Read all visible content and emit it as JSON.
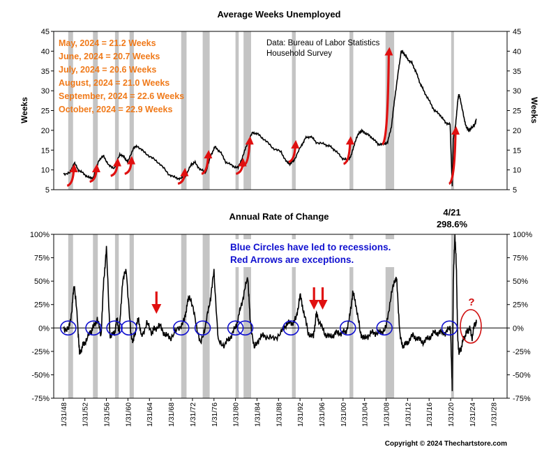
{
  "chart_data": [
    {
      "type": "line",
      "title": "Average Weeks Unemployed",
      "ylabel": "Weeks",
      "ylim": [
        5,
        45
      ],
      "yticks": [
        "5",
        "10",
        "15",
        "20",
        "25",
        "30",
        "35",
        "40",
        "45"
      ],
      "source_lines": [
        "Data: Bureau of Labor Statistics",
        "Household Survey"
      ],
      "annotations": [
        "May, 2024 = 21.2 Weeks",
        "June, 2024 = 20.7 Weeks",
        "July, 2024 = 20.6 Weeks",
        "August, 2024 = 21.0 Weeks",
        "September, 2024 = 22.6 Weeks",
        "October, 2024 = 22.9 Weeks"
      ],
      "x": [
        1948.0,
        1949.2,
        1950.0,
        1950.8,
        1951.8,
        1952.8,
        1953.6,
        1954.6,
        1955.5,
        1956.5,
        1957.5,
        1958.5,
        1959.3,
        1960.0,
        1961.0,
        1961.8,
        1963.0,
        1964.5,
        1966.0,
        1967.5,
        1968.8,
        1969.8,
        1970.8,
        1971.8,
        1972.5,
        1973.5,
        1974.5,
        1975.5,
        1976.2,
        1977.2,
        1978.2,
        1979.5,
        1980.5,
        1981.5,
        1982.3,
        1983.2,
        1984.2,
        1985.5,
        1987.0,
        1988.5,
        1989.5,
        1990.2,
        1990.9,
        1992.2,
        1993.0,
        1994.0,
        1995.0,
        1996.5,
        1997.5,
        1998.5,
        1999.8,
        2000.8,
        2001.5,
        2002.2,
        2003.0,
        2003.6,
        2004.5,
        2005.5,
        2006.5,
        2007.5,
        2008.3,
        2009.0,
        2009.6,
        2010.3,
        2010.8,
        2011.3,
        2012.0,
        2012.8,
        2013.5,
        2014.3,
        2015.0,
        2016.0,
        2017.0,
        2018.0,
        2019.0,
        2019.9,
        2020.3,
        2020.5,
        2020.9,
        2021.3,
        2021.5,
        2021.8,
        2022.5,
        2023.0,
        2023.5,
        2024.0,
        2024.4,
        2024.8
      ],
      "values": [
        9.0,
        9.2,
        11.8,
        10.0,
        9.0,
        8.0,
        8.0,
        12.5,
        13.5,
        11.0,
        10.5,
        14.0,
        13.2,
        12.0,
        15.5,
        16.0,
        14.5,
        13.0,
        11.5,
        9.0,
        8.0,
        7.8,
        8.5,
        11.5,
        11.8,
        10.0,
        9.5,
        14.0,
        15.8,
        14.5,
        12.0,
        11.0,
        10.5,
        14.0,
        17.0,
        19.5,
        19.0,
        17.5,
        15.5,
        14.5,
        12.0,
        11.5,
        12.5,
        16.0,
        18.0,
        18.5,
        17.0,
        16.5,
        16.0,
        15.0,
        13.0,
        12.5,
        13.5,
        17.0,
        19.5,
        19.8,
        19.0,
        18.0,
        16.5,
        16.5,
        17.0,
        21.0,
        28.0,
        35.0,
        40.0,
        39.5,
        38.0,
        37.0,
        35.0,
        32.0,
        30.0,
        27.5,
        25.0,
        24.0,
        22.0,
        21.5,
        6.0,
        18.0,
        21.0,
        27.0,
        29.0,
        28.0,
        23.0,
        20.5,
        20.0,
        20.8,
        21.2,
        22.9
      ]
    },
    {
      "type": "line",
      "title": "Annual Rate of Change",
      "ylim": [
        -75,
        100
      ],
      "yticks": [
        "-75%",
        "-50%",
        "-25%",
        "0%",
        "25%",
        "50%",
        "75%",
        "100%"
      ],
      "xticks": [
        "1/31/48",
        "1/31/52",
        "1/31/56",
        "1/31/60",
        "1/31/64",
        "1/31/68",
        "1/31/72",
        "1/31/76",
        "1/31/80",
        "1/31/84",
        "1/31/88",
        "1/31/92",
        "1/31/96",
        "1/31/00",
        "1/31/04",
        "1/31/08",
        "1/31/12",
        "1/31/16",
        "1/31/20",
        "1/31/24",
        "1/31/28"
      ],
      "peak_label_date": "4/21",
      "peak_label_value": "298.6%",
      "legend_lines": [
        "Blue Circles have led to recessions.",
        "Red Arrows are exceptions."
      ],
      "question_mark": "?",
      "x": [
        1948.0,
        1949.0,
        1949.6,
        1950.0,
        1950.6,
        1951.0,
        1951.5,
        1952.0,
        1953.0,
        1953.5,
        1954.3,
        1955.0,
        1955.5,
        1956.0,
        1956.7,
        1957.5,
        1958.0,
        1958.4,
        1959.0,
        1959.7,
        1960.5,
        1961.0,
        1961.5,
        1962.0,
        1962.5,
        1963.5,
        1964.5,
        1965.0,
        1966.0,
        1967.0,
        1968.0,
        1969.5,
        1970.5,
        1971.0,
        1971.5,
        1972.5,
        1973.5,
        1974.5,
        1975.3,
        1976.0,
        1976.8,
        1978.0,
        1979.0,
        1980.0,
        1980.7,
        1981.5,
        1982.3,
        1982.7,
        1983.5,
        1984.5,
        1985.5,
        1987.0,
        1988.5,
        1989.5,
        1990.5,
        1991.3,
        1992.0,
        1992.6,
        1993.5,
        1994.5,
        1995.0,
        1995.5,
        1996.5,
        1997.5,
        1998.5,
        1999.5,
        2000.5,
        2001.2,
        2001.8,
        2002.4,
        2003.2,
        2004.0,
        2005.0,
        2006.0,
        2007.0,
        2008.0,
        2008.8,
        2009.6,
        2010.0,
        2010.6,
        2011.2,
        2012.0,
        2013.0,
        2014.0,
        2015.0,
        2016.0,
        2017.0,
        2018.0,
        2019.0,
        2020.0,
        2020.3,
        2020.5,
        2020.8,
        2021.1,
        2021.3,
        2021.6,
        2022.0,
        2022.5,
        2023.0,
        2023.5,
        2024.0,
        2024.5,
        2024.8
      ],
      "values": [
        0,
        -2,
        20,
        48,
        10,
        -28,
        -20,
        -15,
        -5,
        0,
        10,
        -8,
        50,
        85,
        -10,
        -5,
        10,
        -5,
        50,
        62,
        -5,
        -15,
        0,
        10,
        -10,
        5,
        -5,
        0,
        2,
        -8,
        -10,
        0,
        8,
        25,
        35,
        10,
        -18,
        5,
        30,
        60,
        -15,
        -18,
        -10,
        0,
        15,
        35,
        55,
        10,
        -22,
        -10,
        -8,
        -12,
        -5,
        5,
        5,
        10,
        35,
        20,
        -5,
        -10,
        15,
        8,
        -5,
        -10,
        -6,
        -5,
        -5,
        10,
        38,
        25,
        -5,
        -12,
        -6,
        -5,
        -5,
        0,
        30,
        52,
        50,
        -10,
        -20,
        -15,
        -8,
        -12,
        -15,
        -10,
        -5,
        -5,
        -5,
        0,
        -68,
        50,
        100,
        60,
        -10,
        -28,
        -20,
        -10,
        -5,
        0,
        -10,
        5,
        5
      ]
    }
  ]
}
